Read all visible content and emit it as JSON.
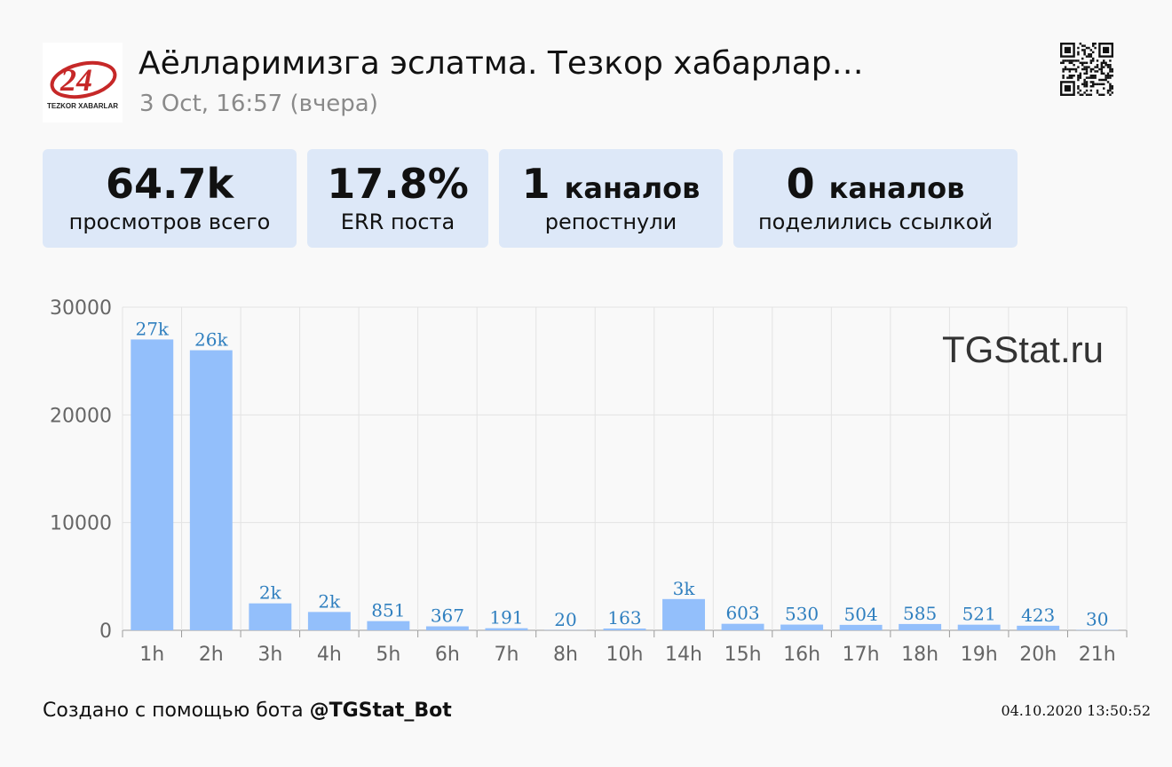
{
  "header": {
    "logo_text": "24",
    "logo_subtext": "TEZKOR XABARLAR",
    "title": "Аёлларимизга эслатма. Тезкор хабарлар…",
    "date": "3 Oct, 16:57 (вчера)"
  },
  "stats": [
    {
      "value": "64.7k",
      "unit": "",
      "label": "просмотров всего"
    },
    {
      "value": "17.8%",
      "unit": "",
      "label": "ERR поста"
    },
    {
      "value": "1",
      "unit": "каналов",
      "label": "репостнули"
    },
    {
      "value": "0",
      "unit": "каналов",
      "label": "поделились ссылкой"
    }
  ],
  "chart_data": {
    "type": "bar",
    "categories": [
      "1h",
      "2h",
      "3h",
      "4h",
      "5h",
      "6h",
      "7h",
      "8h",
      "10h",
      "14h",
      "15h",
      "16h",
      "17h",
      "18h",
      "19h",
      "20h",
      "21h"
    ],
    "values": [
      27000,
      26000,
      2500,
      1700,
      851,
      367,
      191,
      20,
      163,
      2900,
      603,
      530,
      504,
      585,
      521,
      423,
      30
    ],
    "data_labels": [
      "27k",
      "26k",
      "2k",
      "2k",
      "851",
      "367",
      "191",
      "20",
      "163",
      "3k",
      "603",
      "530",
      "504",
      "585",
      "521",
      "423",
      "30"
    ],
    "y_ticks": [
      0,
      10000,
      20000,
      30000
    ],
    "ylim": [
      0,
      30000
    ],
    "grid": true,
    "watermark": "TGStat.ru",
    "bar_color": "#93bffb",
    "label_color": "#2f7fbf"
  },
  "footer": {
    "created_prefix": "Создано с помощью бота ",
    "bot_name": "@TGStat_Bot",
    "timestamp": "04.10.2020 13:50:52"
  }
}
